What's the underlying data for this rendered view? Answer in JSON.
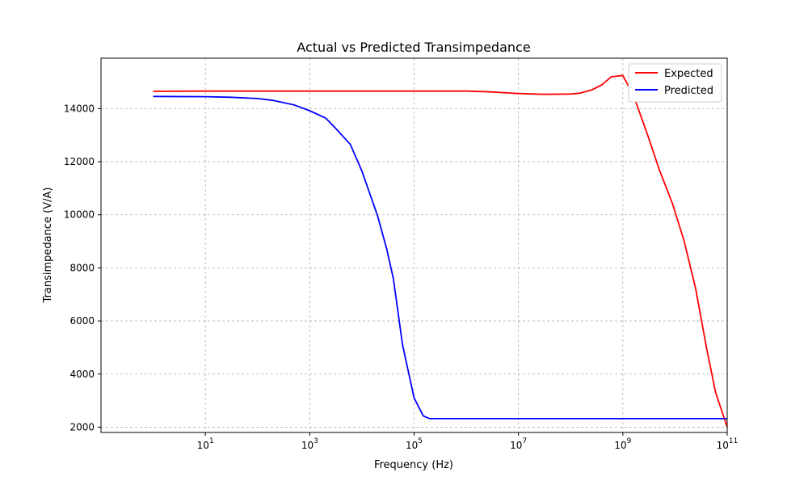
{
  "chart_data": {
    "type": "line",
    "title": "Actual vs Predicted Transimpedance",
    "xlabel": "Frequency (Hz)",
    "ylabel": "Transimpedance (V/A)",
    "x_scale": "log",
    "xlim": [
      0.1,
      100000000000.0
    ],
    "ylim": [
      1800,
      15900
    ],
    "grid": true,
    "legend_position": "top-right",
    "xticks": [
      {
        "value": 10,
        "base": "10",
        "exp": "1"
      },
      {
        "value": 1000,
        "base": "10",
        "exp": "3"
      },
      {
        "value": 100000,
        "base": "10",
        "exp": "5"
      },
      {
        "value": 10000000,
        "base": "10",
        "exp": "7"
      },
      {
        "value": 1000000000,
        "base": "10",
        "exp": "9"
      },
      {
        "value": 100000000000,
        "base": "10",
        "exp": "11"
      }
    ],
    "yticks": [
      {
        "value": 2000,
        "label": "2000"
      },
      {
        "value": 4000,
        "label": "4000"
      },
      {
        "value": 6000,
        "label": "6000"
      },
      {
        "value": 8000,
        "label": "8000"
      },
      {
        "value": 10000,
        "label": "10000"
      },
      {
        "value": 12000,
        "label": "12000"
      },
      {
        "value": 14000,
        "label": "14000"
      }
    ],
    "series": [
      {
        "name": "Expected",
        "color": "#ff0000",
        "points": [
          [
            1,
            14650
          ],
          [
            10,
            14660
          ],
          [
            1000,
            14660
          ],
          [
            100000,
            14660
          ],
          [
            1000000,
            14660
          ],
          [
            3000000,
            14630
          ],
          [
            10000000,
            14570
          ],
          [
            30000000,
            14540
          ],
          [
            100000000,
            14550
          ],
          [
            150000000,
            14580
          ],
          [
            250000000,
            14700
          ],
          [
            400000000,
            14900
          ],
          [
            600000000,
            15200
          ],
          [
            1000000000,
            15250
          ],
          [
            1600000000,
            14500
          ],
          [
            3000000000,
            13000
          ],
          [
            5000000000,
            11700
          ],
          [
            9000000000,
            10400
          ],
          [
            15000000000,
            9000
          ],
          [
            25000000000,
            7200
          ],
          [
            40000000000,
            5000
          ],
          [
            60000000000,
            3300
          ],
          [
            100000000000,
            2000
          ]
        ]
      },
      {
        "name": "Predicted",
        "color": "#0000ff",
        "points": [
          [
            1,
            14460
          ],
          [
            10,
            14450
          ],
          [
            30,
            14430
          ],
          [
            100,
            14380
          ],
          [
            200,
            14310
          ],
          [
            500,
            14140
          ],
          [
            1000,
            13920
          ],
          [
            2000,
            13650
          ],
          [
            3000,
            13300
          ],
          [
            6000,
            12650
          ],
          [
            10000,
            11650
          ],
          [
            20000,
            9950
          ],
          [
            30000,
            8700
          ],
          [
            40000,
            7600
          ],
          [
            60000,
            5100
          ],
          [
            100000,
            3100
          ],
          [
            150000,
            2420
          ],
          [
            200000,
            2320
          ],
          [
            1000000,
            2320
          ],
          [
            100000000000,
            2320
          ]
        ]
      }
    ]
  }
}
